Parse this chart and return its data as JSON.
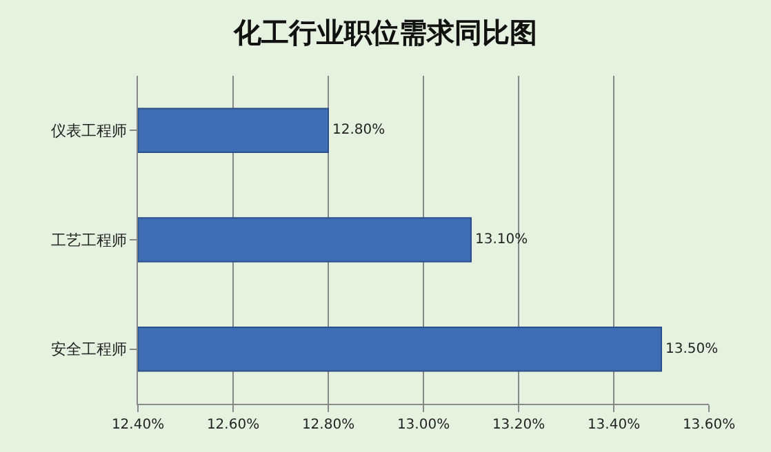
{
  "chart_data": {
    "type": "bar",
    "orientation": "horizontal",
    "title": "化工行业职位需求同比图",
    "categories": [
      "仪表工程师",
      "工艺工程师",
      "安全工程师"
    ],
    "values": [
      12.8,
      13.1,
      13.5
    ],
    "value_labels": [
      "12.80%",
      "13.10%",
      "13.50%"
    ],
    "color": "#3f6db3",
    "xlim": [
      12.4,
      13.6
    ],
    "xticks": [
      {
        "value": 12.4,
        "label": "12.40%"
      },
      {
        "value": 12.6,
        "label": "12.60%"
      },
      {
        "value": 12.8,
        "label": "12.80%"
      },
      {
        "value": 13.0,
        "label": "13.00%"
      },
      {
        "value": 13.2,
        "label": "13.20%"
      },
      {
        "value": 13.4,
        "label": "13.40%"
      },
      {
        "value": 13.6,
        "label": "13.60%"
      }
    ],
    "grid": "x",
    "legend": false
  }
}
